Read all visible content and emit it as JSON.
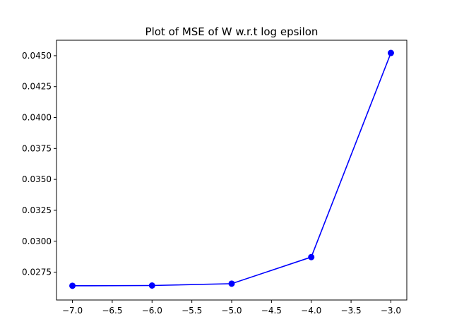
{
  "chart_data": {
    "type": "line",
    "title": "Plot of MSE of W w.r.t log epsilon",
    "xlabel": "",
    "ylabel": "",
    "xlim": [
      -7.2,
      -2.8
    ],
    "ylim": [
      0.02525,
      0.04625
    ],
    "x_ticks": [
      -7.0,
      -6.5,
      -6.0,
      -5.5,
      -5.0,
      -4.5,
      -4.0,
      -3.5,
      -3.0
    ],
    "x_tick_labels": [
      "−7.0",
      "−6.5",
      "−6.0",
      "−5.5",
      "−5.0",
      "−4.5",
      "−4.0",
      "−3.5",
      "−3.0"
    ],
    "y_ticks": [
      0.0275,
      0.03,
      0.0325,
      0.035,
      0.0375,
      0.04,
      0.0425,
      0.045
    ],
    "y_tick_labels": [
      "0.0275",
      "0.0300",
      "0.0325",
      "0.0350",
      "0.0375",
      "0.0400",
      "0.0425",
      "0.0450"
    ],
    "grid": false,
    "series": [
      {
        "color": "#0000ff",
        "marker": "circle",
        "x": [
          -7,
          -6,
          -5,
          -4,
          -3
        ],
        "values": [
          0.0264,
          0.02642,
          0.02657,
          0.02872,
          0.04522
        ]
      }
    ]
  }
}
